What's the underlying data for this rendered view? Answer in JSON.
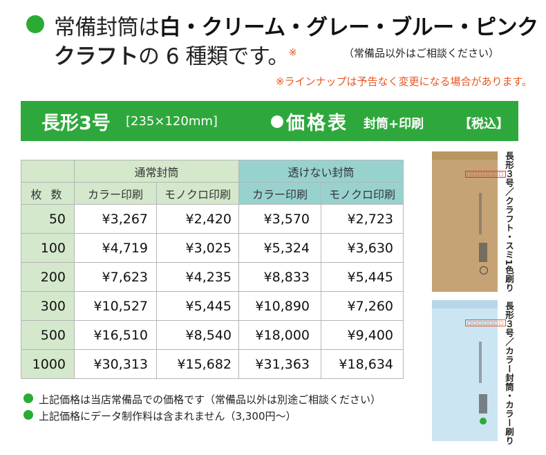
{
  "intro": {
    "line1_prefix": "常備封筒は",
    "line1_bold": "白・クリーム・グレー・ブルー・ピンク",
    "line2_bold": "クラフト",
    "line2_rest": "の 6 種類です。",
    "line2_mark": "※",
    "note": "（常備品以外はご相談ください）"
  },
  "notice": "※ラインナップは予告なく変更になる場合があります。",
  "banner": {
    "title": "長形3号",
    "size": "[235×120mm]",
    "price_label": "価格表",
    "sub_label": "封筒+印刷",
    "tax_label": "【税込】"
  },
  "table": {
    "group_headers": [
      "通常封筒",
      "透けない封筒"
    ],
    "qty_header": "枚 数",
    "sub_headers": [
      "カラー印刷",
      "モノクロ印刷",
      "カラー印刷",
      "モノクロ印刷"
    ],
    "rows": [
      {
        "qty": "50",
        "prices": [
          "¥3,267",
          "¥2,420",
          "¥3,570",
          "¥2,723"
        ]
      },
      {
        "qty": "100",
        "prices": [
          "¥4,719",
          "¥3,025",
          "¥5,324",
          "¥3,630"
        ]
      },
      {
        "qty": "200",
        "prices": [
          "¥7,623",
          "¥4,235",
          "¥8,833",
          "¥5,445"
        ]
      },
      {
        "qty": "300",
        "prices": [
          "¥10,527",
          "¥5,445",
          "¥10,890",
          "¥7,260"
        ]
      },
      {
        "qty": "500",
        "prices": [
          "¥16,510",
          "¥8,540",
          "¥18,000",
          "¥9,400"
        ]
      },
      {
        "qty": "1000",
        "prices": [
          "¥30,313",
          "¥15,682",
          "¥31,363",
          "¥18,634"
        ]
      }
    ]
  },
  "footnotes": [
    "上記価格は当店常備品での価格です（常備品以外は別途ご相談ください）",
    "上記価格にデータ制作料は含まれません（3,300円〜）"
  ],
  "samples": [
    {
      "caption": "長形３号／クラフト・スミ1色刷り",
      "code_box": "□□□□□□□"
    },
    {
      "caption": "長形３号／カラー封筒・カラー刷り",
      "code_box": "□□□□□□□"
    }
  ],
  "colors": {
    "brand_green": "#2ea83c",
    "accent_orange": "#e8541e",
    "header_green": "#d4e8cc",
    "header_teal": "#98d2cf",
    "kraft": "#c6a374",
    "light_blue": "#cbe5f3"
  }
}
